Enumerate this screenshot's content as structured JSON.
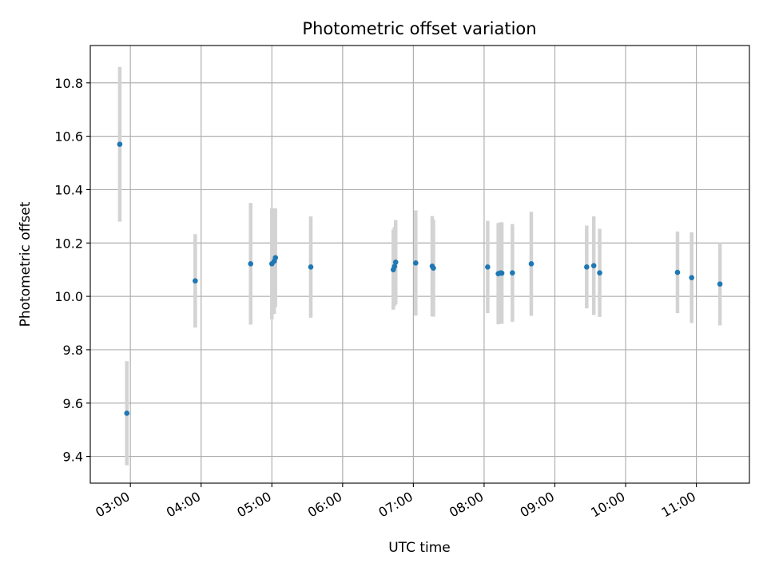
{
  "chart_data": {
    "type": "scatter",
    "title": "Photometric offset variation",
    "xlabel": "UTC time",
    "ylabel": "Photometric offset",
    "x_axis_type": "time",
    "xlim": [
      "02:26",
      "11:45"
    ],
    "ylim": [
      9.3,
      10.94
    ],
    "grid": true,
    "x_ticks": [
      "03:00",
      "04:00",
      "05:00",
      "06:00",
      "07:00",
      "08:00",
      "09:00",
      "10:00",
      "11:00"
    ],
    "y_ticks": [
      "9.4",
      "9.6",
      "9.8",
      "10.0",
      "10.2",
      "10.4",
      "10.6",
      "10.8"
    ],
    "colors": {
      "points": "#1f77b4",
      "error_bars": "#d3d3d3",
      "grid": "#b0b0b0"
    },
    "points": [
      {
        "x": "02:51",
        "y": 10.57,
        "err": 0.29
      },
      {
        "x": "02:57",
        "y": 9.562,
        "err": 0.195
      },
      {
        "x": "03:55",
        "y": 10.058,
        "err": 0.175
      },
      {
        "x": "04:42",
        "y": 10.122,
        "err": 0.228
      },
      {
        "x": "05:00",
        "y": 10.122,
        "err": 0.208
      },
      {
        "x": "05:02",
        "y": 10.132,
        "err": 0.198
      },
      {
        "x": "05:03",
        "y": 10.145,
        "err": 0.185
      },
      {
        "x": "05:33",
        "y": 10.11,
        "err": 0.19
      },
      {
        "x": "06:43",
        "y": 10.1,
        "err": 0.15
      },
      {
        "x": "06:44",
        "y": 10.112,
        "err": 0.148
      },
      {
        "x": "06:45",
        "y": 10.128,
        "err": 0.158
      },
      {
        "x": "07:02",
        "y": 10.125,
        "err": 0.197
      },
      {
        "x": "07:16",
        "y": 10.113,
        "err": 0.188
      },
      {
        "x": "07:17",
        "y": 10.106,
        "err": 0.182
      },
      {
        "x": "08:03",
        "y": 10.11,
        "err": 0.173
      },
      {
        "x": "08:12",
        "y": 10.085,
        "err": 0.19
      },
      {
        "x": "08:14",
        "y": 10.088,
        "err": 0.19
      },
      {
        "x": "08:15",
        "y": 10.087,
        "err": 0.19
      },
      {
        "x": "08:24",
        "y": 10.088,
        "err": 0.183
      },
      {
        "x": "08:40",
        "y": 10.122,
        "err": 0.195
      },
      {
        "x": "09:27",
        "y": 10.11,
        "err": 0.155
      },
      {
        "x": "09:33",
        "y": 10.115,
        "err": 0.185
      },
      {
        "x": "09:38",
        "y": 10.088,
        "err": 0.165
      },
      {
        "x": "10:44",
        "y": 10.09,
        "err": 0.153
      },
      {
        "x": "10:56",
        "y": 10.07,
        "err": 0.17
      },
      {
        "x": "11:20",
        "y": 10.046,
        "err": 0.155
      }
    ]
  }
}
